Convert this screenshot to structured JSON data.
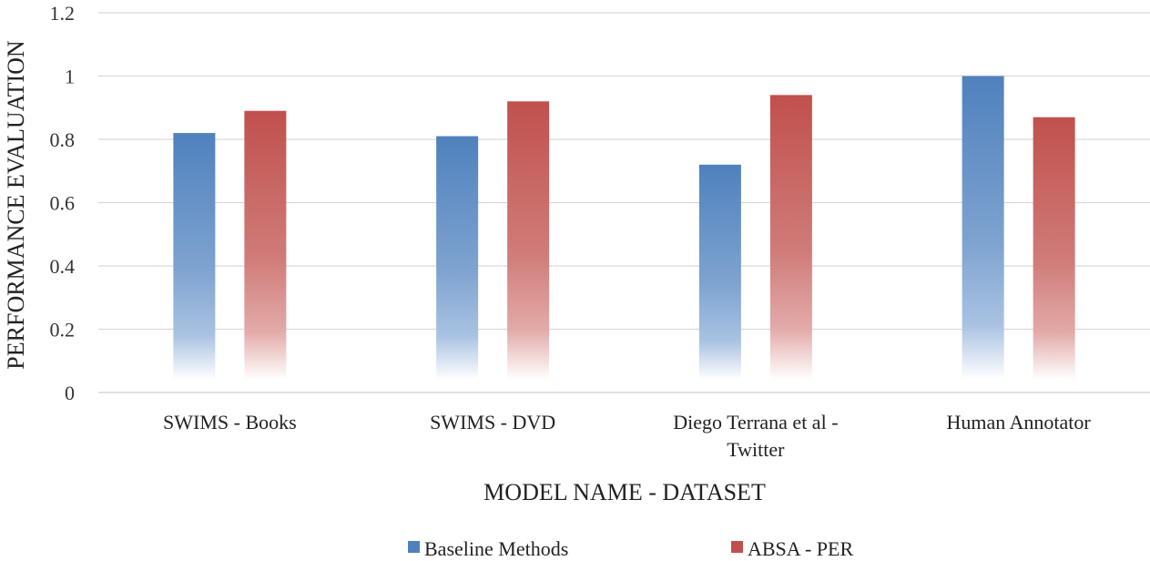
{
  "chart_data": {
    "type": "bar",
    "title": "",
    "xlabel": "MODEL NAME - DATASET",
    "ylabel": "PERFORMANCE EVALUATION",
    "ylim": [
      0,
      1.2
    ],
    "yticks": [
      "0",
      "0.2",
      "0.4",
      "0.6",
      "0.8",
      "1",
      "1.2"
    ],
    "grid": true,
    "legend_position": "bottom",
    "categories": [
      [
        "SWIMS - Books"
      ],
      [
        "SWIMS - DVD"
      ],
      [
        "Diego Terrana et al -",
        "Twitter"
      ],
      [
        "Human Annotator"
      ]
    ],
    "series": [
      {
        "name": "Baseline Methods",
        "color": "#4f81bd",
        "values": [
          0.82,
          0.81,
          0.72,
          1.0
        ]
      },
      {
        "name": "ABSA - PER",
        "color": "#c0504d",
        "values": [
          0.89,
          0.92,
          0.94,
          0.87
        ]
      }
    ]
  }
}
